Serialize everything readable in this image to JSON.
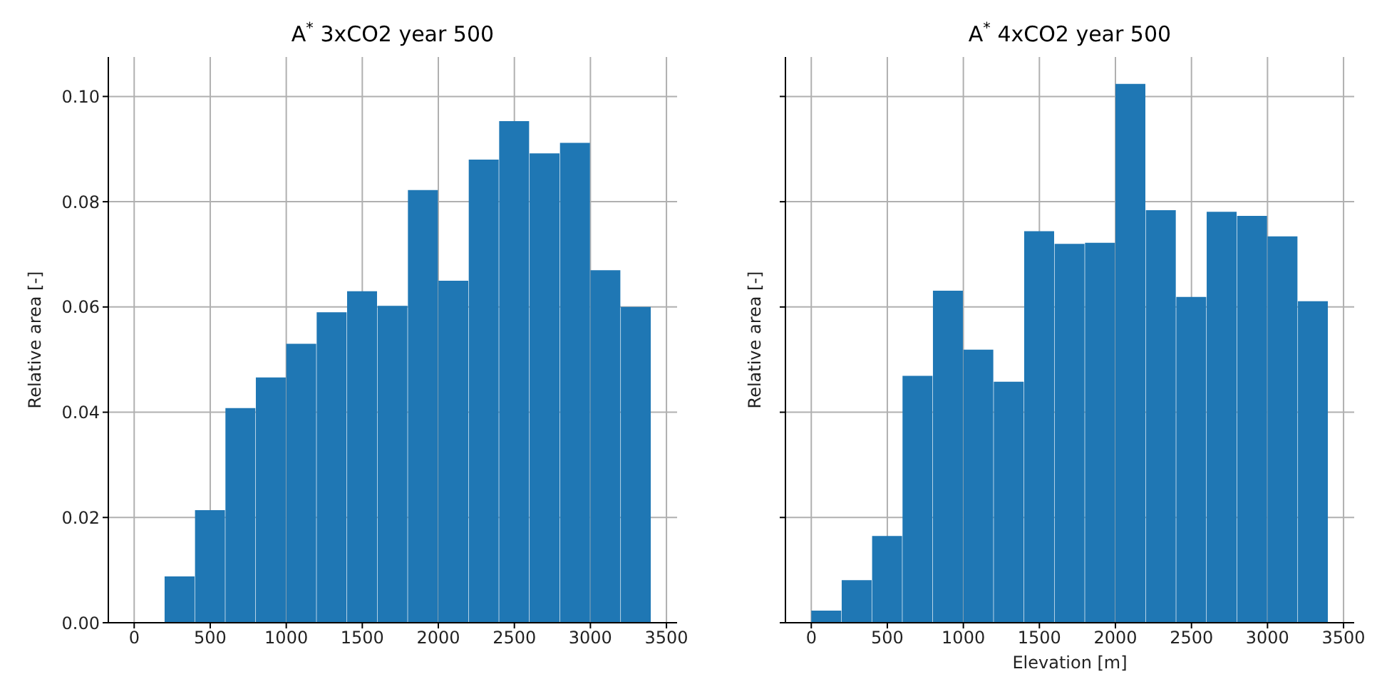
{
  "chart_data": [
    {
      "type": "histogram",
      "title": "A$^{*}$ 3xCO2 year 500",
      "ylabel": "Relative area [-]",
      "color": "#1f77b4",
      "grid": true,
      "bins": [
        0,
        200,
        400,
        600,
        800,
        1000,
        1200,
        1400,
        1600,
        1800,
        2000,
        2200,
        2400,
        2600,
        2800,
        3000,
        3200,
        3400
      ],
      "values": [
        0,
        0.0088,
        0.0214,
        0.0408,
        0.0466,
        0.053,
        0.059,
        0.063,
        0.0602,
        0.0822,
        0.065,
        0.088,
        0.0953,
        0.0892,
        0.0912,
        0.067,
        0.06
      ],
      "xlim": [
        -170,
        3570
      ],
      "xticks": [
        0,
        500,
        1000,
        1500,
        2000,
        2500,
        3000,
        3500
      ],
      "ylim": [
        0,
        0.1075
      ],
      "yticks": [
        {
          "value": 0,
          "label": "0.00"
        },
        {
          "value": 0.02,
          "label": "0.02"
        },
        {
          "value": 0.04,
          "label": "0.04"
        },
        {
          "value": 0.06,
          "label": "0.06"
        },
        {
          "value": 0.08,
          "label": "0.08"
        },
        {
          "value": 0.1,
          "label": "0.10"
        }
      ]
    },
    {
      "type": "histogram",
      "title": "A$^{*}$ 4xCO2 year 500",
      "xlabel": "Elevation [m]",
      "ylabel": "Relative area [-]",
      "color": "#1f77b4",
      "grid": true,
      "tick_labels": "x",
      "bins": [
        0,
        200,
        400,
        600,
        800,
        1000,
        1200,
        1400,
        1600,
        1800,
        2000,
        2200,
        2400,
        2600,
        2800,
        3000,
        3200,
        3400
      ],
      "values": [
        0.0023,
        0.0081,
        0.0165,
        0.0469,
        0.0631,
        0.0519,
        0.0458,
        0.0744,
        0.072,
        0.0722,
        0.1024,
        0.0784,
        0.0619,
        0.0781,
        0.0773,
        0.0734,
        0.0611
      ],
      "xlim": [
        -170,
        3570
      ],
      "xticks": [
        0,
        500,
        1000,
        1500,
        2000,
        2500,
        3000,
        3500
      ],
      "ylim": [
        0,
        0.1075
      ],
      "yticks": [
        {
          "value": 0,
          "label": null
        },
        {
          "value": 0.02,
          "label": null
        },
        {
          "value": 0.04,
          "label": null
        },
        {
          "value": 0.06,
          "label": null
        },
        {
          "value": 0.08,
          "label": null
        },
        {
          "value": 0.1,
          "label": null
        }
      ]
    }
  ]
}
